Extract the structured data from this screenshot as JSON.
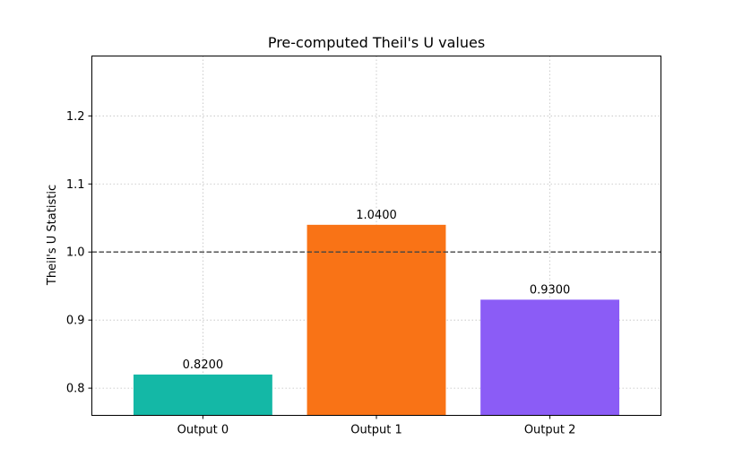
{
  "chart_data": {
    "type": "bar",
    "title": "Pre-computed Theil's U values",
    "xlabel": "",
    "ylabel": "Theil's U Statistic",
    "categories": [
      "Output 0",
      "Output 1",
      "Output 2"
    ],
    "values": [
      0.82,
      1.04,
      0.93
    ],
    "value_labels": [
      "0.8200",
      "1.0400",
      "0.9300"
    ],
    "bar_colors": [
      "#14b8a6",
      "#f97316",
      "#8b5cf6"
    ],
    "ylim": [
      0.76,
      1.288
    ],
    "yticks": [
      0.8,
      0.9,
      1.0,
      1.1,
      1.2
    ],
    "ytick_labels": [
      "0.8",
      "0.9",
      "1.0",
      "1.1",
      "1.2"
    ],
    "reference_line": {
      "y": 1.0,
      "style": "dashed",
      "color": "#444444"
    },
    "grid": true
  }
}
